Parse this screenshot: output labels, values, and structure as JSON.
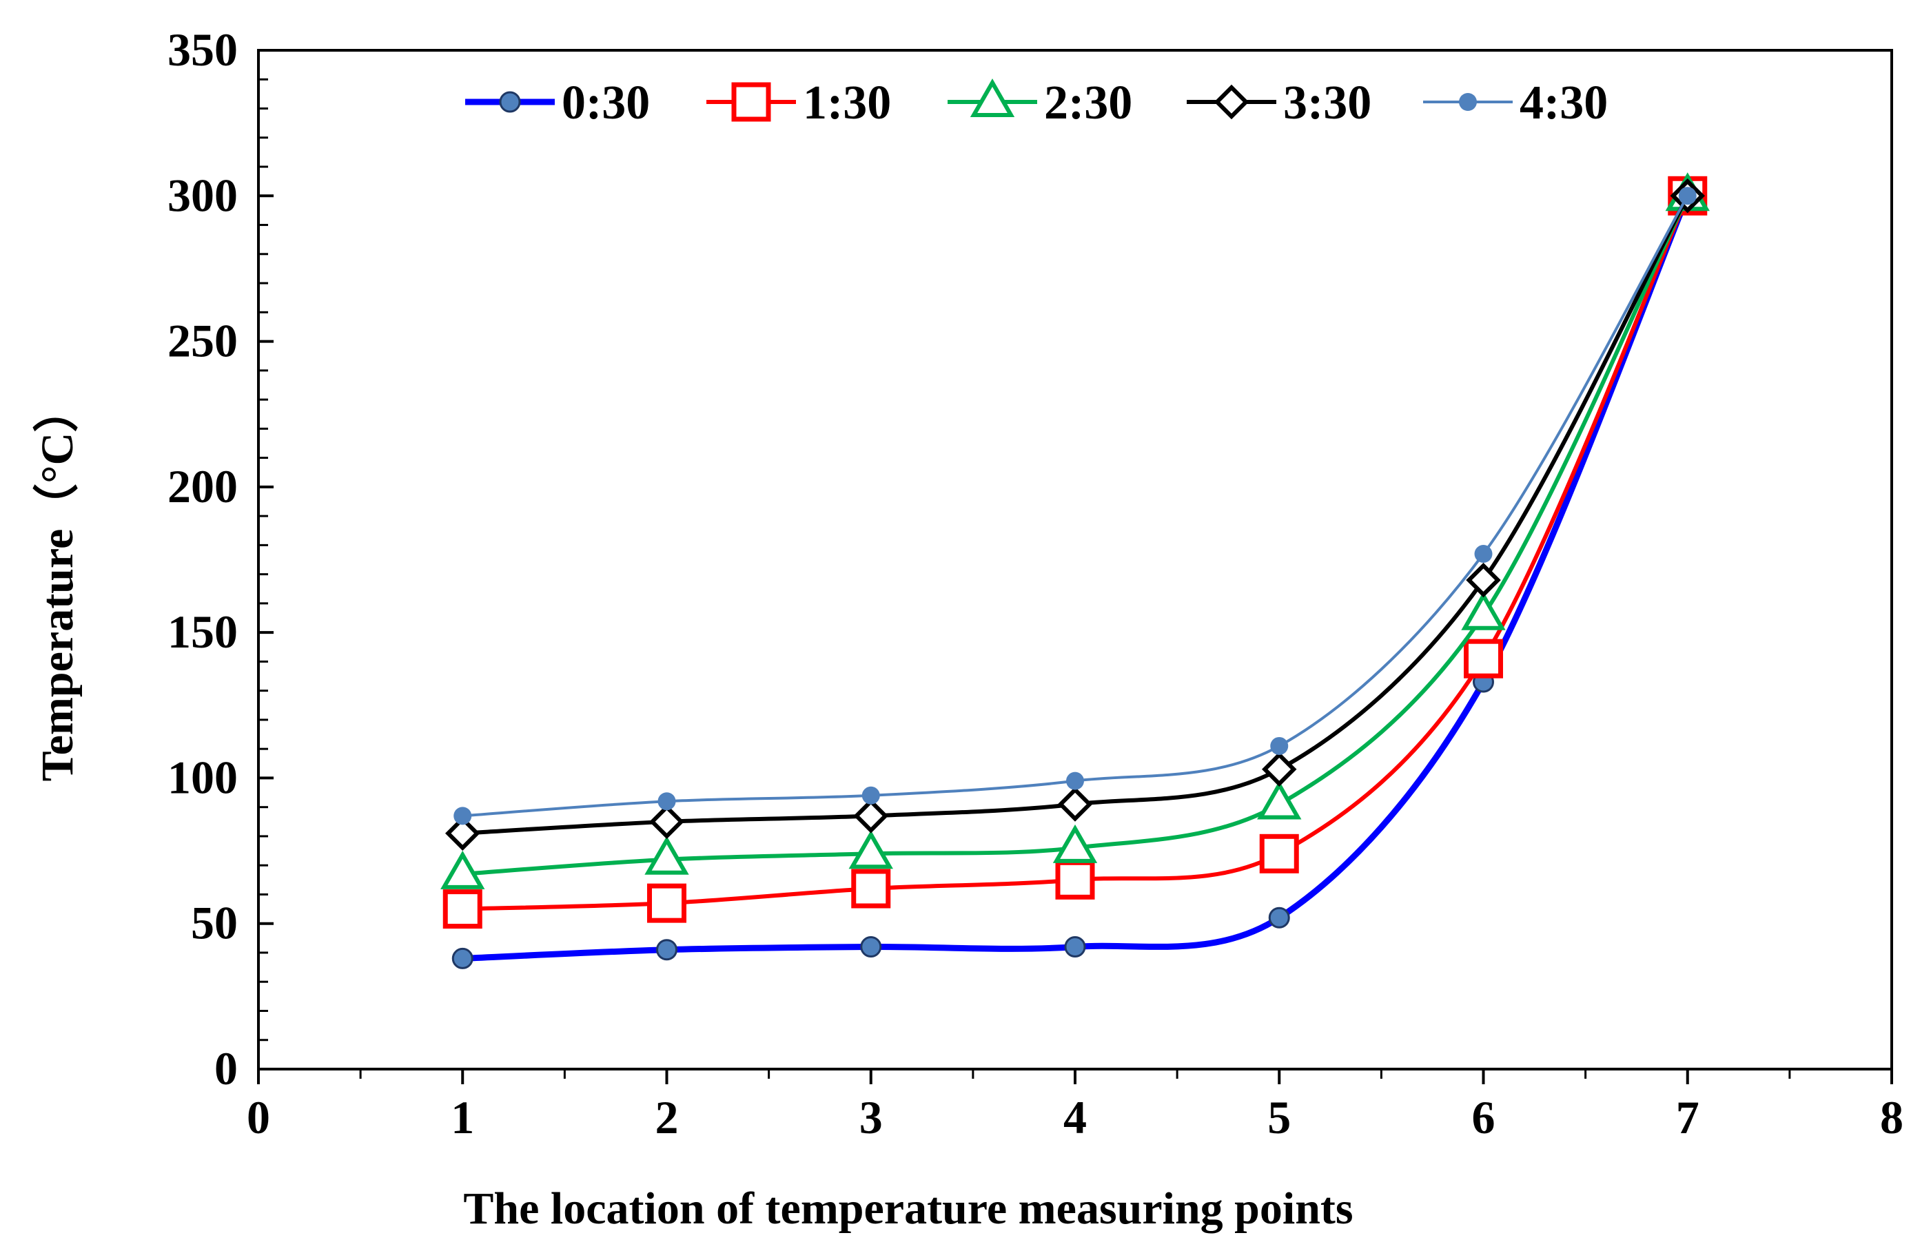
{
  "chart_data": {
    "type": "line",
    "title": "",
    "xlabel": "The location of temperature measuring points",
    "ylabel": "Temperature（°C）",
    "xlim": [
      0,
      8
    ],
    "ylim": [
      0,
      350
    ],
    "xticks": [
      0,
      1,
      2,
      3,
      4,
      5,
      6,
      7,
      8
    ],
    "yticks": [
      0,
      50,
      100,
      150,
      200,
      250,
      300,
      350
    ],
    "x": [
      1,
      2,
      3,
      4,
      5,
      6,
      7
    ],
    "grid": false,
    "legend_position": "top-center",
    "series": [
      {
        "name": "0:30",
        "color": "#0000ff",
        "marker": "circle-dot",
        "marker_color": "#4f81bd",
        "line_width": "thick",
        "values": [
          38,
          41,
          42,
          42,
          52,
          133,
          300
        ]
      },
      {
        "name": "1:30",
        "color": "#ff0000",
        "marker": "square",
        "marker_color": "#ff0000",
        "line_width": "medium",
        "values": [
          55,
          57,
          62,
          65,
          74,
          141,
          300
        ]
      },
      {
        "name": "2:30",
        "color": "#00b050",
        "marker": "triangle",
        "marker_color": "#00b050",
        "line_width": "medium",
        "values": [
          67,
          72,
          74,
          76,
          91,
          156,
          300
        ]
      },
      {
        "name": "3:30",
        "color": "#000000",
        "marker": "diamond",
        "marker_color": "#000000",
        "line_width": "medium",
        "values": [
          81,
          85,
          87,
          91,
          103,
          168,
          300
        ]
      },
      {
        "name": "4:30",
        "color": "#4f81bd",
        "marker": "dot",
        "marker_color": "#4f81bd",
        "line_width": "thin",
        "values": [
          87,
          92,
          94,
          99,
          111,
          177,
          300
        ]
      }
    ]
  }
}
